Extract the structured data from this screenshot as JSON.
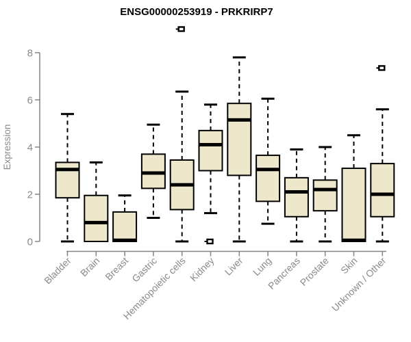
{
  "header": {
    "title": "ENSG00000253919 - PRKRIRP7"
  },
  "chart_data": {
    "type": "boxplot",
    "title": "ENSG00000253919 - PRKRIRP7",
    "ylabel": "Expression",
    "xlabel": "",
    "ylim": [
      0,
      8
    ],
    "yticks": [
      0,
      2,
      4,
      6,
      8
    ],
    "grid": false,
    "legend": "none",
    "categories": [
      "Bladder",
      "Brain",
      "Breast",
      "Gastric",
      "Hematopoietic cells",
      "Kidney",
      "Liver",
      "Lung",
      "Pancreas",
      "Prostate",
      "Skin",
      "Unknown / Other"
    ],
    "series": [
      {
        "category": "Bladder",
        "whisker_low": 0,
        "q1": 1.85,
        "median": 3.05,
        "q3": 3.35,
        "whisker_high": 5.4,
        "outliers": []
      },
      {
        "category": "Brain",
        "whisker_low": 0,
        "q1": 0,
        "median": 0.8,
        "q3": 1.95,
        "whisker_high": 3.35,
        "outliers": []
      },
      {
        "category": "Breast",
        "whisker_low": 0,
        "q1": 0,
        "median": 0.05,
        "q3": 1.25,
        "whisker_high": 1.95,
        "outliers": []
      },
      {
        "category": "Gastric",
        "whisker_low": 1.0,
        "q1": 2.25,
        "median": 2.9,
        "q3": 3.7,
        "whisker_high": 4.95,
        "outliers": []
      },
      {
        "category": "Hematopoietic cells",
        "whisker_low": 0,
        "q1": 1.35,
        "median": 2.4,
        "q3": 3.45,
        "whisker_high": 6.35,
        "outliers": [
          9.0
        ]
      },
      {
        "category": "Kidney",
        "whisker_low": 1.2,
        "q1": 3.0,
        "median": 4.1,
        "q3": 4.7,
        "whisker_high": 5.8,
        "outliers": [
          0
        ]
      },
      {
        "category": "Liver",
        "whisker_low": 0,
        "q1": 2.8,
        "median": 5.15,
        "q3": 5.85,
        "whisker_high": 7.8,
        "outliers": []
      },
      {
        "category": "Lung",
        "whisker_low": 0.75,
        "q1": 1.7,
        "median": 3.05,
        "q3": 3.65,
        "whisker_high": 6.05,
        "outliers": []
      },
      {
        "category": "Pancreas",
        "whisker_low": 0,
        "q1": 1.05,
        "median": 2.1,
        "q3": 2.7,
        "whisker_high": 3.9,
        "outliers": []
      },
      {
        "category": "Prostate",
        "whisker_low": 0,
        "q1": 1.3,
        "median": 2.2,
        "q3": 2.6,
        "whisker_high": 4.0,
        "outliers": []
      },
      {
        "category": "Skin",
        "whisker_low": 0,
        "q1": 0,
        "median": 0.05,
        "q3": 3.1,
        "whisker_high": 4.5,
        "outliers": []
      },
      {
        "category": "Unknown / Other",
        "whisker_low": 0,
        "q1": 1.05,
        "median": 2.0,
        "q3": 3.3,
        "whisker_high": 5.6,
        "outliers": [
          7.35
        ]
      }
    ],
    "colors": {
      "box_fill": "#EDE7CC",
      "box_border": "#000000",
      "median": "#000000",
      "whisker": "#000000",
      "axis": "#848484",
      "tick_label": "#8a8a8a",
      "title": "#000000",
      "background": "#ffffff"
    }
  }
}
